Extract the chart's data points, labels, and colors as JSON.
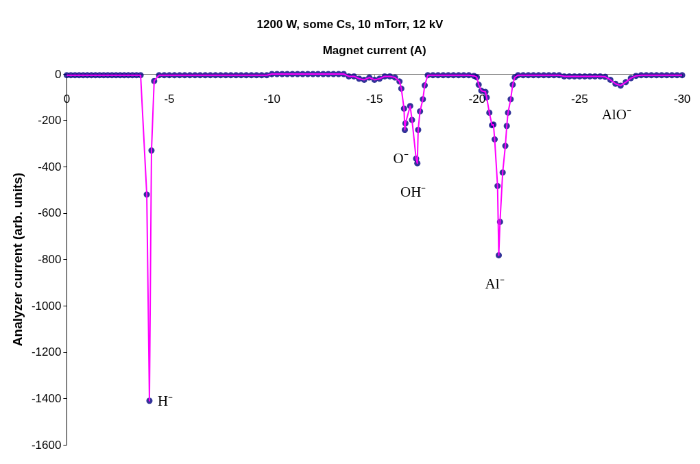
{
  "chart_data": {
    "type": "line",
    "title": "1200 W, some Cs, 10 mTorr, 12 kV",
    "xlabel": "Magnet current (A)",
    "ylabel": "Analyzer current (arb. units)",
    "x": [
      0,
      -0.2,
      -0.4,
      -0.6,
      -0.8,
      -1,
      -1.2,
      -1.4,
      -1.6,
      -1.8,
      -2,
      -2.2,
      -2.4,
      -2.6,
      -2.8,
      -3,
      -3.2,
      -3.4,
      -3.6,
      -3.9,
      -4.03,
      -4.13,
      -4.26,
      -4.5,
      -4.75,
      -5,
      -5.25,
      -5.5,
      -5.75,
      -6,
      -6.25,
      -6.5,
      -6.75,
      -7,
      -7.25,
      -7.5,
      -7.75,
      -8,
      -8.25,
      -8.5,
      -8.75,
      -9,
      -9.25,
      -9.5,
      -9.75,
      -10,
      -10.25,
      -10.5,
      -10.75,
      -11,
      -11.25,
      -11.5,
      -11.75,
      -12,
      -12.25,
      -12.5,
      -12.75,
      -13,
      -13.25,
      -13.5,
      -13.75,
      -14,
      -14.25,
      -14.5,
      -14.75,
      -15,
      -15.25,
      -15.5,
      -15.75,
      -16,
      -16.22,
      -16.31,
      -16.44,
      -16.48,
      -16.51,
      -16.74,
      -16.83,
      -17.03,
      -17.09,
      -17.13,
      -17.22,
      -17.36,
      -17.45,
      -17.6,
      -17.85,
      -18.1,
      -18.35,
      -18.6,
      -18.85,
      -19.1,
      -19.35,
      -19.6,
      -19.85,
      -19.99,
      -20.08,
      -20.21,
      -20.41,
      -20.47,
      -20.6,
      -20.73,
      -20.8,
      -20.86,
      -21,
      -21.06,
      -21.12,
      -21.25,
      -21.38,
      -21.45,
      -21.51,
      -21.64,
      -21.74,
      -21.84,
      -22,
      -22.25,
      -22.5,
      -22.75,
      -23,
      -23.25,
      -23.5,
      -23.75,
      -24,
      -24.25,
      -24.5,
      -24.75,
      -25,
      -25.25,
      -25.5,
      -25.75,
      -26,
      -26.25,
      -26.5,
      -26.75,
      -27,
      -27.25,
      -27.5,
      -27.75,
      -28,
      -28.25,
      -28.5,
      -28.75,
      -29,
      -29.25,
      -29.5,
      -29.75,
      -30
    ],
    "series": [
      {
        "color": "#ff00ff",
        "marker": "none",
        "values": [
          -5,
          -5,
          -5,
          -5,
          -5,
          -5,
          -5,
          -5,
          -5,
          -5,
          -5,
          -5,
          -5,
          -5,
          -5,
          -5,
          -5,
          -5,
          -5,
          -520,
          -1410,
          -330,
          -30,
          -5,
          -5,
          -5,
          -5,
          -5,
          -5,
          -5,
          -5,
          -5,
          -5,
          -5,
          -5,
          -5,
          -5,
          -5,
          -5,
          -5,
          -5,
          -5,
          -5,
          -5,
          -5,
          0,
          0,
          0,
          0,
          0,
          0,
          0,
          0,
          0,
          0,
          0,
          0,
          0,
          0,
          0,
          -10,
          -10,
          -20,
          -25,
          -15,
          -25,
          -20,
          -10,
          -10,
          -15,
          -32,
          -63,
          -149,
          -241,
          -213,
          -138,
          -198,
          -365,
          -385,
          -241,
          -161,
          -109,
          -49,
          -5,
          -5,
          -5,
          -5,
          -5,
          -5,
          -5,
          -5,
          -5,
          -8,
          -14,
          -46,
          -72,
          -77,
          -101,
          -167,
          -221,
          -218,
          -282,
          -483,
          -782,
          -638,
          -425,
          -310,
          -224,
          -167,
          -109,
          -46,
          -14,
          -5,
          -5,
          -5,
          -5,
          -5,
          -5,
          -5,
          -5,
          -5,
          -10,
          -10,
          -10,
          -10,
          -10,
          -10,
          -10,
          -10,
          -12,
          -25,
          -42,
          -50,
          -35,
          -18,
          -8,
          -5,
          -5,
          -5,
          -5,
          -5,
          -5,
          -5,
          -5,
          -5
        ]
      },
      {
        "type": "scatter",
        "color": "#000080",
        "marker": "circle",
        "values": [
          -5,
          -5,
          -5,
          -5,
          -5,
          -5,
          -5,
          -5,
          -5,
          -5,
          -5,
          -5,
          -5,
          -5,
          -5,
          -5,
          -5,
          -5,
          -5,
          -520,
          -1410,
          -330,
          -30,
          -5,
          -5,
          -5,
          -5,
          -5,
          -5,
          -5,
          -5,
          -5,
          -5,
          -5,
          -5,
          -5,
          -5,
          -5,
          -5,
          -5,
          -5,
          -5,
          -5,
          -5,
          -5,
          0,
          0,
          0,
          0,
          0,
          0,
          0,
          0,
          0,
          0,
          0,
          0,
          0,
          0,
          0,
          -10,
          -10,
          -20,
          -25,
          -15,
          -25,
          -20,
          -10,
          -10,
          -15,
          -32,
          -63,
          -149,
          -241,
          -213,
          -138,
          -198,
          -365,
          -385,
          -241,
          -161,
          -109,
          -49,
          -5,
          -5,
          -5,
          -5,
          -5,
          -5,
          -5,
          -5,
          -5,
          -8,
          -14,
          -46,
          -72,
          -77,
          -101,
          -167,
          -221,
          -218,
          -282,
          -483,
          -782,
          -638,
          -425,
          -310,
          -224,
          -167,
          -109,
          -46,
          -14,
          -5,
          -5,
          -5,
          -5,
          -5,
          -5,
          -5,
          -5,
          -5,
          -10,
          -10,
          -10,
          -10,
          -10,
          -10,
          -10,
          -10,
          -12,
          -25,
          -42,
          -50,
          -35,
          -18,
          -8,
          -5,
          -5,
          -5,
          -5,
          -5,
          -5,
          -5,
          -5,
          -5
        ]
      }
    ],
    "xlim": [
      0,
      -30
    ],
    "xticks": [
      0,
      -5,
      -10,
      -15,
      -20,
      -25,
      -30
    ],
    "ylim": [
      -1600,
      0
    ],
    "yticks": [
      0,
      -200,
      -400,
      -600,
      -800,
      -1000,
      -1200,
      -1400,
      -1600
    ],
    "grid": false,
    "annotations": [
      {
        "text": "H⁻",
        "x": -4.03,
        "y": -1410
      },
      {
        "text": "O⁻",
        "x": -16.48,
        "y": -241
      },
      {
        "text": "OH⁻",
        "x": -17.09,
        "y": -385
      },
      {
        "text": "Al⁻",
        "x": -21.06,
        "y": -782
      },
      {
        "text": "AlO⁻",
        "x": -27,
        "y": -50
      }
    ]
  }
}
